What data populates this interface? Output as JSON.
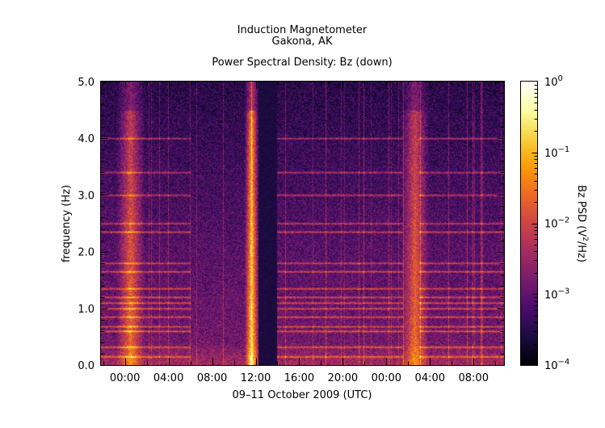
{
  "chart_data": {
    "type": "heatmap",
    "title": "Induction Magnetometer",
    "subtitle": "Gakona, AK",
    "plot_title": "Power Spectral Density: Bz (down)",
    "xlabel": "09–11 October 2009 (UTC)",
    "ylabel": "frequency (Hz)",
    "x_tick_labels": [
      "00:00",
      "04:00",
      "08:00",
      "12:00",
      "16:00",
      "20:00",
      "00:00",
      "04:00",
      "08:00"
    ],
    "x_range_hours": [
      -2.2,
      34.8
    ],
    "y_tick_labels": [
      "0.0",
      "1.0",
      "2.0",
      "3.0",
      "4.0",
      "5.0"
    ],
    "ylim": [
      0,
      5
    ],
    "colorbar": {
      "label_prefix": "Bz PSD (V",
      "label_sup": "2",
      "label_suffix": "/Hz)",
      "scale": "log",
      "range": [
        0.0001,
        1
      ],
      "tick_base": "10",
      "tick_exponents": [
        "0",
        "−1",
        "−2",
        "−3",
        "−4"
      ],
      "colormap": [
        "#000004",
        "#1b0c41",
        "#4a0c6b",
        "#781c6d",
        "#a52c60",
        "#cf4446",
        "#ed6925",
        "#fb9b06",
        "#f7d13d",
        "#fcffa4",
        "#ffffff"
      ]
    },
    "features": {
      "harmonic_frequencies_hz": [
        0.15,
        0.32,
        0.6,
        0.68,
        0.85,
        1.0,
        1.1,
        1.2,
        1.35,
        1.65,
        1.8,
        2.35,
        2.5,
        3.0,
        3.4,
        4.0
      ],
      "broadband_events_hours": [
        0.5,
        11.6,
        26.6
      ],
      "data_gap_hours": [
        12.2,
        13.9
      ]
    }
  }
}
